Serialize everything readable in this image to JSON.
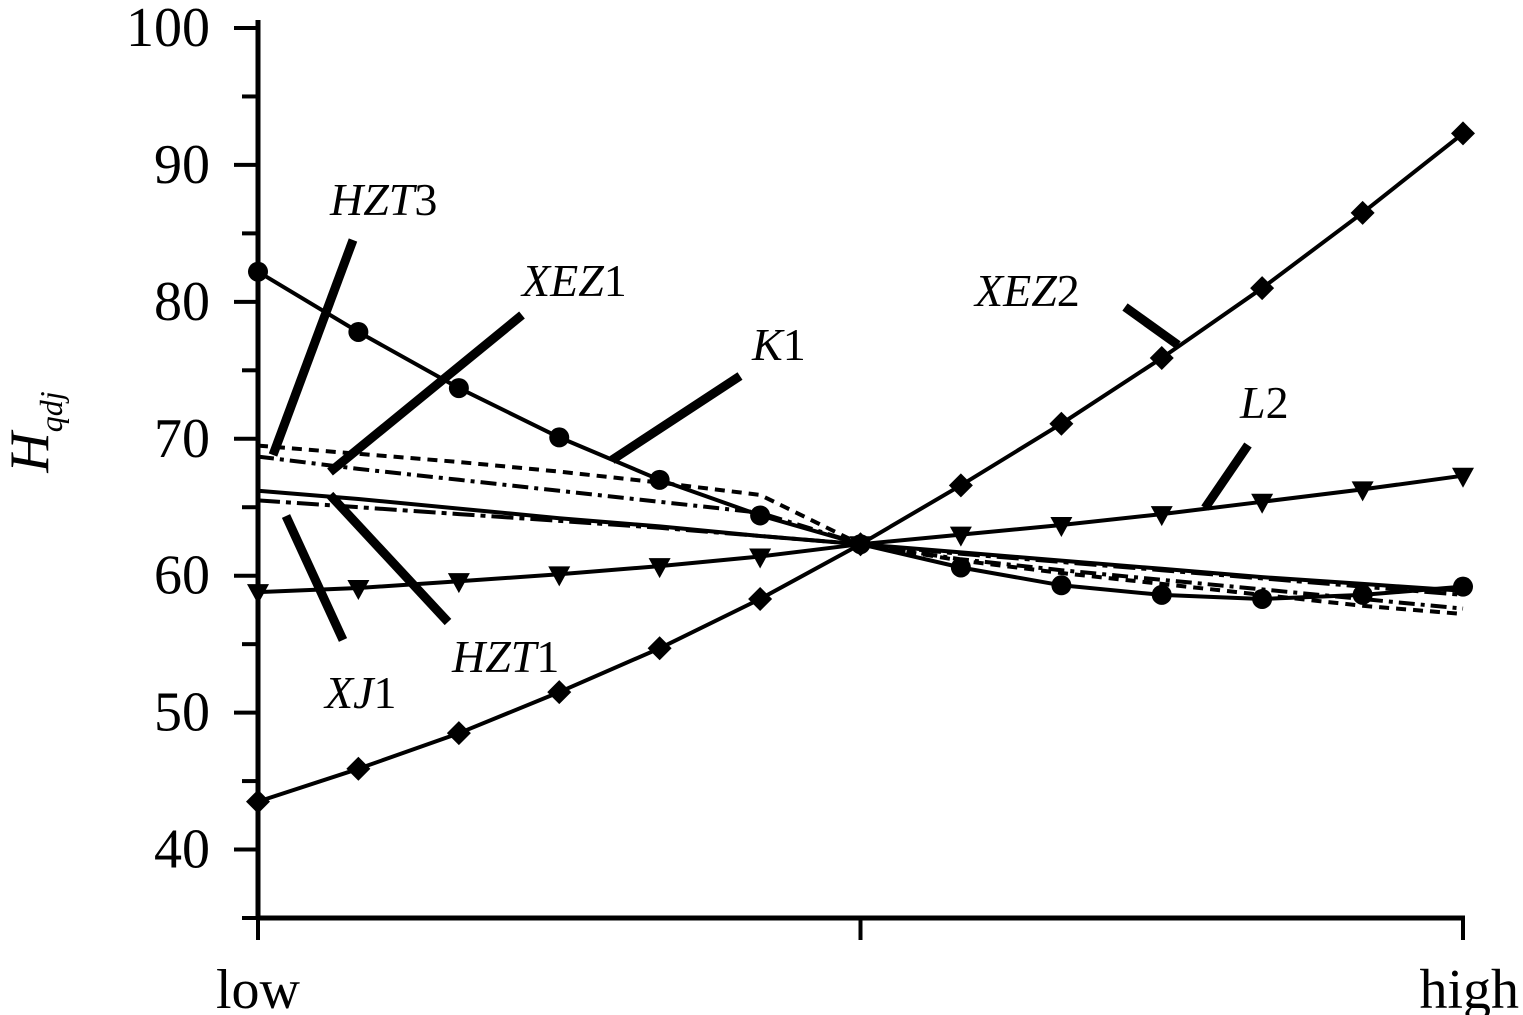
{
  "chart_data": {
    "type": "line",
    "ylabel": "H",
    "ylabel_subscript": "qdj",
    "ylim": [
      35,
      100
    ],
    "yticks": [
      40,
      50,
      60,
      70,
      80,
      90,
      100
    ],
    "x_tick_labels": [
      "low",
      "",
      "high"
    ],
    "x": [
      0,
      0.0833,
      0.1667,
      0.25,
      0.3333,
      0.4167,
      0.5,
      0.5833,
      0.6667,
      0.75,
      0.8333,
      0.9167,
      1.0
    ],
    "series": [
      {
        "name": "HZT3",
        "name_italic": "HZT",
        "name_plain": "3",
        "style": "short-dash",
        "marker": "none",
        "values": [
          69.5,
          68.9,
          68.3,
          67.6,
          66.8,
          65.9,
          62.3,
          61.1,
          60.2,
          59.4,
          58.6,
          57.8,
          57.2
        ]
      },
      {
        "name": "XEZ1",
        "name_italic": "XEZ",
        "name_plain": "1",
        "style": "dash-dot",
        "marker": "none",
        "values": [
          68.7,
          67.8,
          67.0,
          66.2,
          65.4,
          64.6,
          62.3,
          61.2,
          60.4,
          59.7,
          59.0,
          58.3,
          57.6
        ]
      },
      {
        "name": "K1",
        "name_italic": "K",
        "name_plain": "1",
        "style": "solid",
        "marker": "circle",
        "values": [
          82.2,
          77.8,
          73.7,
          70.1,
          67.0,
          64.4,
          62.3,
          60.6,
          59.3,
          58.6,
          58.3,
          58.6,
          59.2
        ]
      },
      {
        "name": "XEZ2",
        "name_italic": "XEZ",
        "name_plain": "2",
        "style": "solid",
        "marker": "diamond",
        "values": [
          43.5,
          45.9,
          48.5,
          51.5,
          54.7,
          58.3,
          62.3,
          66.6,
          71.1,
          75.9,
          81.0,
          86.5,
          92.3
        ]
      },
      {
        "name": "L2",
        "name_italic": "L",
        "name_plain": "2",
        "style": "solid",
        "marker": "triangle-down",
        "values": [
          58.8,
          59.1,
          59.6,
          60.1,
          60.7,
          61.4,
          62.3,
          63.0,
          63.7,
          64.5,
          65.4,
          66.3,
          67.3
        ]
      },
      {
        "name": "HZT1",
        "name_italic": "HZT",
        "name_plain": "1",
        "style": "solid",
        "marker": "none",
        "values": [
          66.2,
          65.6,
          64.9,
          64.2,
          63.6,
          62.9,
          62.3,
          61.7,
          61.1,
          60.5,
          59.9,
          59.4,
          58.9
        ]
      },
      {
        "name": "XJ1",
        "name_italic": "XJ",
        "name_plain": "1",
        "style": "long-dash-dot",
        "marker": "none",
        "values": [
          65.5,
          65.0,
          64.5,
          64.0,
          63.5,
          62.9,
          62.3,
          61.6,
          61.0,
          60.4,
          59.8,
          59.2,
          58.6
        ]
      }
    ]
  }
}
